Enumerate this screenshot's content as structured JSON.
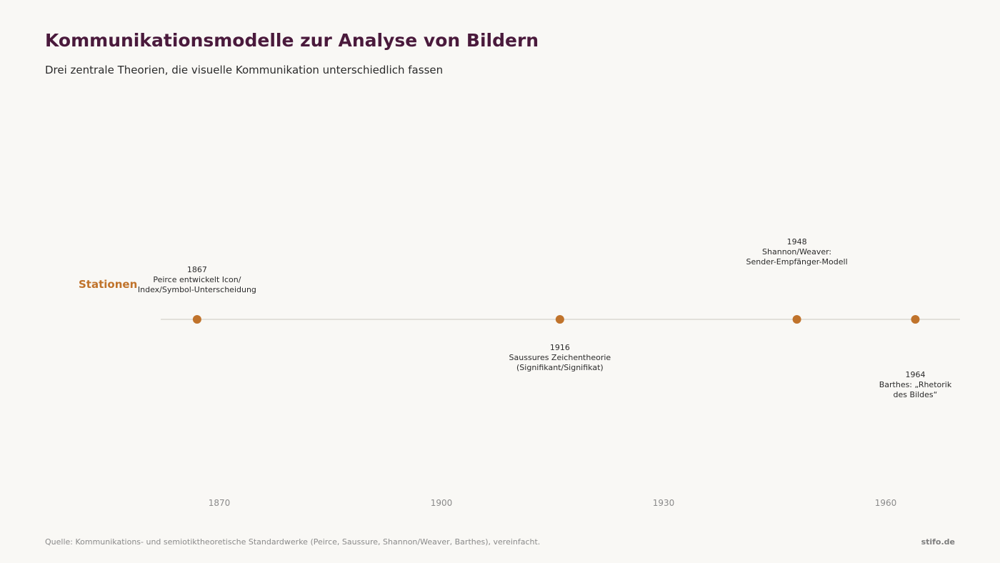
{
  "header": {
    "title": "Kommunikationsmodelle zur Analyse von Bildern",
    "subtitle": "Drei zentrale Theorien, die visuelle Kommunikation unterschiedlich fassen"
  },
  "footer": {
    "source": "Quelle: Kommunikations- und semiotiktheoretische Standardwerke (Peirce, Saussure, Shannon/Weaver, Barthes), vereinfacht.",
    "brand": "stifo.de"
  },
  "colors": {
    "accent": "#c0732b",
    "title": "#4a1a3c",
    "axis_line": "#e2e0da",
    "text": "#2b2b2b",
    "muted": "#8a8a8a"
  },
  "chart_data": {
    "type": "scatter",
    "lane": "Stationen",
    "xlim": [
      1862,
      1970
    ],
    "x_ticks": [
      1870,
      1900,
      1930,
      1960
    ],
    "events": [
      {
        "year": 1867,
        "label_lines": [
          "1867",
          "Peirce entwickelt Icon/",
          "Index/Symbol-Unterscheidung"
        ],
        "label_position": "above"
      },
      {
        "year": 1916,
        "label_lines": [
          "1916",
          "Saussures Zeichentheorie",
          "(Signifikant/Signifikat)"
        ],
        "label_position": "below"
      },
      {
        "year": 1948,
        "label_lines": [
          "1948",
          "Shannon/Weaver:",
          "Sender-Empfänger-Modell"
        ],
        "label_position": "above-far"
      },
      {
        "year": 1964,
        "label_lines": [
          "1964",
          "Barthes: „Rhetorik",
          "des Bildes“"
        ],
        "label_position": "below-far"
      }
    ]
  }
}
